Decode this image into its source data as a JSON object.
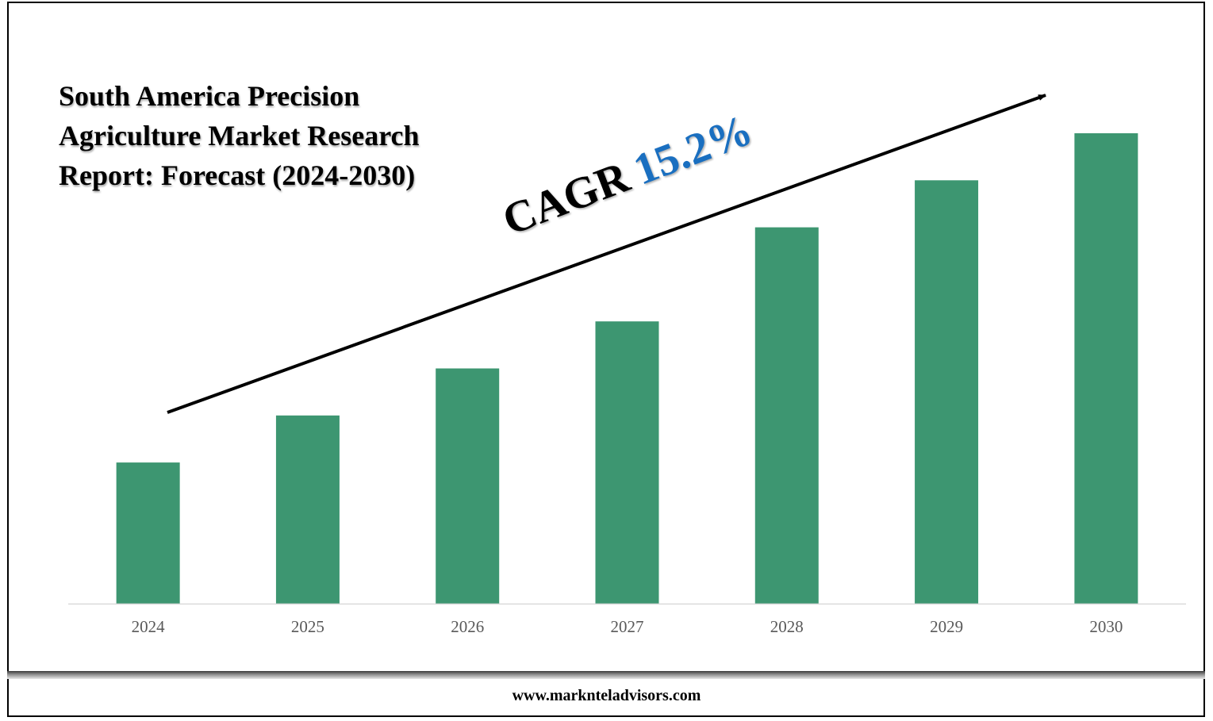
{
  "title_lines": [
    "South America Precision",
    "Agriculture Market Research",
    "Report: Forecast (2024-2030)"
  ],
  "cagr": {
    "label": "CAGR",
    "value": "15.2%"
  },
  "footer": {
    "url": "www.marknteladvisors.com"
  },
  "colors": {
    "bar": "#3d9671",
    "axis": "#d9d9d9",
    "tick_text": "#595959",
    "cagr_value": "#1a6fc0",
    "arrow": "#000000"
  },
  "chart_data": {
    "type": "bar",
    "categories": [
      "2024",
      "2025",
      "2026",
      "2027",
      "2028",
      "2029",
      "2030"
    ],
    "values": [
      30,
      40,
      50,
      60,
      80,
      90,
      100
    ],
    "title": "South America Precision Agriculture Market Research Report: Forecast (2024-2030)",
    "xlabel": "",
    "ylabel": "",
    "ylim": [
      0,
      100
    ],
    "grid": false,
    "legend": "none",
    "annotations": [
      "CAGR 15.2%"
    ]
  }
}
